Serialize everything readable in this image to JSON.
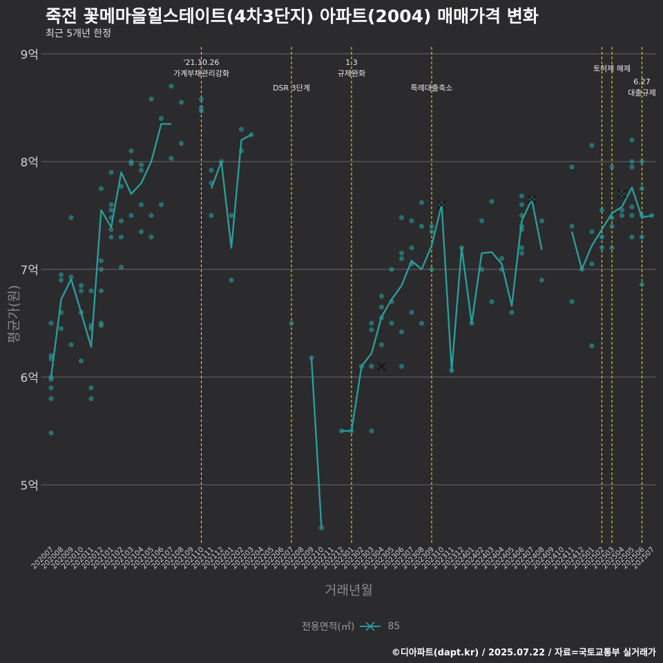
{
  "title": "죽전 꽃메마을힐스테이트(4차3단지) 아파트(2004) 매매가격 변화",
  "subtitle": "최근 5개년 한정",
  "footer": "©디아파트(dapt.kr) / 2025.07.22 / 자료=국토교통부 실거래가",
  "colors": {
    "background": "#2b2b2d",
    "series": "#2a9d9b",
    "event_line": "#e4e000",
    "grid": "#6a6a6a"
  },
  "chart_data": {
    "type": "line",
    "title": "죽전 꽃메마을힐스테이트(4차3단지) 아파트(2004) 매매가격 변화",
    "xlabel": "거래년월",
    "ylabel": "평균가(원)",
    "ylim": [
      4.4,
      9.0
    ],
    "grid": true,
    "legend_title": "전용면적(㎡)",
    "legend_position": "bottom",
    "yticks": [
      {
        "value": 5,
        "label": "5억"
      },
      {
        "value": 6,
        "label": "6억"
      },
      {
        "value": 7,
        "label": "7억"
      },
      {
        "value": 8,
        "label": "8억"
      },
      {
        "value": 9,
        "label": "9억"
      }
    ],
    "months": [
      "202007",
      "202008",
      "202009",
      "202010",
      "202011",
      "202012",
      "202101",
      "202102",
      "202103",
      "202104",
      "202105",
      "202106",
      "202107",
      "202108",
      "202109",
      "202110",
      "202111",
      "202112",
      "202201",
      "202202",
      "202203",
      "202204",
      "202205",
      "202206",
      "202207",
      "202208",
      "202209",
      "202210",
      "202211",
      "202212",
      "202301",
      "202302",
      "202303",
      "202304",
      "202305",
      "202306",
      "202307",
      "202308",
      "202309",
      "202310",
      "202311",
      "202312",
      "202401",
      "202402",
      "202403",
      "202404",
      "202405",
      "202406",
      "202407",
      "202408",
      "202409",
      "202410",
      "202411",
      "202412",
      "202501",
      "202502",
      "202503",
      "202504",
      "202505",
      "202506",
      "202507"
    ],
    "series": [
      {
        "name": "85",
        "line": [
          6.0,
          6.72,
          6.91,
          6.6,
          6.28,
          7.55,
          7.39,
          7.9,
          7.7,
          7.8,
          8.0,
          8.35,
          8.35,
          null,
          null,
          null,
          7.75,
          8.0,
          7.2,
          8.2,
          8.25,
          null,
          null,
          null,
          null,
          null,
          6.18,
          4.6,
          null,
          5.5,
          5.5,
          6.1,
          6.22,
          6.56,
          6.72,
          6.85,
          7.08,
          7.0,
          7.22,
          7.6,
          6.06,
          7.2,
          6.5,
          7.15,
          7.16,
          7.05,
          6.66,
          7.45,
          7.65,
          7.18,
          null,
          null,
          7.35,
          7.0,
          7.22,
          7.37,
          7.52,
          7.58,
          7.76,
          7.48,
          7.5
        ],
        "points": [
          [
            0,
            6.5
          ],
          [
            0,
            6.2
          ],
          [
            0,
            6.17
          ],
          [
            0,
            6.0
          ],
          [
            0,
            5.98
          ],
          [
            0,
            5.9
          ],
          [
            0,
            5.8
          ],
          [
            0,
            5.48
          ],
          [
            1,
            6.95
          ],
          [
            1,
            6.9
          ],
          [
            1,
            6.6
          ],
          [
            1,
            6.45
          ],
          [
            2,
            7.48
          ],
          [
            2,
            6.93
          ],
          [
            2,
            6.3
          ],
          [
            3,
            6.85
          ],
          [
            3,
            6.8
          ],
          [
            3,
            6.6
          ],
          [
            3,
            6.15
          ],
          [
            4,
            6.8
          ],
          [
            4,
            6.48
          ],
          [
            4,
            6.45
          ],
          [
            4,
            5.9
          ],
          [
            4,
            5.8
          ],
          [
            5,
            7.75
          ],
          [
            5,
            7.08
          ],
          [
            5,
            7.0
          ],
          [
            5,
            6.8
          ],
          [
            5,
            6.5
          ],
          [
            5,
            6.48
          ],
          [
            6,
            7.9
          ],
          [
            6,
            7.6
          ],
          [
            6,
            7.55
          ],
          [
            6,
            7.48
          ],
          [
            6,
            7.37
          ],
          [
            6,
            7.3
          ],
          [
            7,
            7.77
          ],
          [
            7,
            7.45
          ],
          [
            7,
            7.3
          ],
          [
            7,
            7.02
          ],
          [
            8,
            8.1
          ],
          [
            8,
            8.0
          ],
          [
            8,
            7.98
          ],
          [
            8,
            7.5
          ],
          [
            9,
            7.97
          ],
          [
            9,
            7.92
          ],
          [
            9,
            7.6
          ],
          [
            9,
            7.35
          ],
          [
            10,
            8.58
          ],
          [
            10,
            7.5
          ],
          [
            10,
            7.3
          ],
          [
            11,
            8.4
          ],
          [
            11,
            7.6
          ],
          [
            12,
            8.7
          ],
          [
            12,
            8.03
          ],
          [
            13,
            8.55
          ],
          [
            13,
            8.17
          ],
          [
            15,
            8.58
          ],
          [
            15,
            8.5
          ],
          [
            15,
            8.47
          ],
          [
            16,
            7.92
          ],
          [
            16,
            7.8
          ],
          [
            16,
            7.5
          ],
          [
            17,
            8.0
          ],
          [
            18,
            7.5
          ],
          [
            18,
            6.9
          ],
          [
            19,
            8.3
          ],
          [
            19,
            8.1
          ],
          [
            20,
            8.25
          ],
          [
            24,
            6.5
          ],
          [
            26,
            6.18
          ],
          [
            27,
            4.6
          ],
          [
            29,
            5.5
          ],
          [
            30,
            5.5
          ],
          [
            31,
            6.1
          ],
          [
            32,
            6.5
          ],
          [
            32,
            6.44
          ],
          [
            32,
            6.1
          ],
          [
            32,
            5.5
          ],
          [
            33,
            6.75
          ],
          [
            33,
            6.65
          ],
          [
            33,
            6.55
          ],
          [
            33,
            6.3
          ],
          [
            34,
            7.0
          ],
          [
            34,
            6.7
          ],
          [
            34,
            6.5
          ],
          [
            35,
            7.48
          ],
          [
            35,
            7.15
          ],
          [
            35,
            7.1
          ],
          [
            35,
            6.42
          ],
          [
            35,
            6.1
          ],
          [
            36,
            7.45
          ],
          [
            36,
            7.2
          ],
          [
            36,
            7.05
          ],
          [
            36,
            6.6
          ],
          [
            37,
            7.62
          ],
          [
            37,
            7.4
          ],
          [
            37,
            6.5
          ],
          [
            38,
            7.4
          ],
          [
            38,
            7.35
          ],
          [
            38,
            7.0
          ],
          [
            39,
            7.6
          ],
          [
            40,
            6.06
          ],
          [
            41,
            7.2
          ],
          [
            42,
            6.5
          ],
          [
            43,
            7.45
          ],
          [
            43,
            7.0
          ],
          [
            44,
            7.63
          ],
          [
            44,
            6.7
          ],
          [
            45,
            7.1
          ],
          [
            45,
            7.0
          ],
          [
            46,
            6.6
          ],
          [
            47,
            7.68
          ],
          [
            47,
            7.6
          ],
          [
            47,
            7.5
          ],
          [
            47,
            7.4
          ],
          [
            47,
            7.37
          ],
          [
            47,
            7.2
          ],
          [
            47,
            7.15
          ],
          [
            48,
            7.65
          ],
          [
            49,
            7.45
          ],
          [
            49,
            6.9
          ],
          [
            52,
            7.95
          ],
          [
            52,
            7.4
          ],
          [
            52,
            6.7
          ],
          [
            53,
            7.0
          ],
          [
            54,
            8.15
          ],
          [
            54,
            7.35
          ],
          [
            54,
            7.05
          ],
          [
            54,
            6.29
          ],
          [
            55,
            7.55
          ],
          [
            55,
            7.3
          ],
          [
            55,
            7.2
          ],
          [
            56,
            7.95
          ],
          [
            56,
            7.48
          ],
          [
            56,
            7.4
          ],
          [
            56,
            7.2
          ],
          [
            57,
            7.7
          ],
          [
            57,
            7.55
          ],
          [
            57,
            7.5
          ],
          [
            58,
            8.2
          ],
          [
            58,
            8.0
          ],
          [
            58,
            7.95
          ],
          [
            58,
            7.58
          ],
          [
            58,
            7.5
          ],
          [
            58,
            7.3
          ],
          [
            59,
            8.0
          ],
          [
            59,
            7.75
          ],
          [
            59,
            7.5
          ],
          [
            59,
            7.3
          ],
          [
            59,
            6.86
          ],
          [
            60,
            7.5
          ]
        ],
        "crosses": [
          [
            33,
            6.1
          ],
          [
            39,
            7.6
          ],
          [
            48,
            7.65
          ],
          [
            57,
            7.7
          ]
        ]
      }
    ],
    "events": [
      {
        "index": 15,
        "lines": [
          "'21.10.26",
          "가계부채관리강화"
        ],
        "level": 0
      },
      {
        "index": 24,
        "lines": [
          "DSR 3단계"
        ],
        "level": 1
      },
      {
        "index": 30,
        "lines": [
          "1.3",
          "규제완화"
        ],
        "level": 0
      },
      {
        "index": 38,
        "lines": [
          "특례대출축소"
        ],
        "level": 1
      },
      {
        "index": 55,
        "lines": [],
        "level": 0
      },
      {
        "index": 56,
        "lines": [
          "토허제 해제"
        ],
        "level": 0
      },
      {
        "index": 59,
        "lines": [
          "6.27",
          "대출규제"
        ],
        "level": 1
      }
    ]
  }
}
